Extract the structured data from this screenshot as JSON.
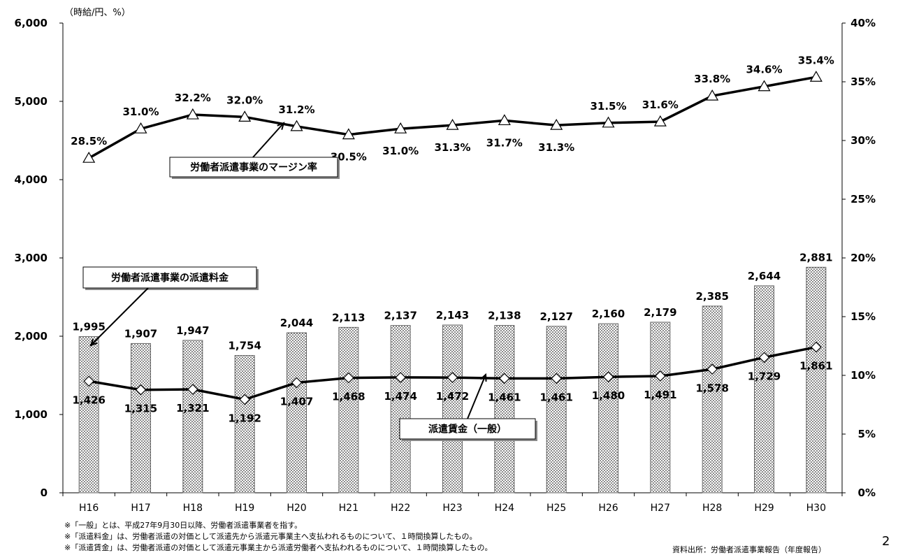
{
  "chart_data": {
    "type": "bar",
    "unit_label": "（時給/円、%）",
    "categories": [
      "H16",
      "H17",
      "H18",
      "H19",
      "H20",
      "H21",
      "H22",
      "H23",
      "H24",
      "H25",
      "H26",
      "H27",
      "H28",
      "H29",
      "H30"
    ],
    "left_axis": {
      "min": 0,
      "max": 6000,
      "ticks": [
        "0",
        "1,000",
        "2,000",
        "3,000",
        "4,000",
        "5,000",
        "6,000"
      ]
    },
    "right_axis": {
      "min": 0,
      "max": 40,
      "ticks": [
        "0%",
        "5%",
        "10%",
        "15%",
        "20%",
        "25%",
        "30%",
        "35%",
        "40%"
      ]
    },
    "series": [
      {
        "name": "労働者派遣事業の派遣料金",
        "type": "bar",
        "axis": "left",
        "values": [
          1995,
          1907,
          1947,
          1754,
          2044,
          2113,
          2137,
          2143,
          2138,
          2127,
          2160,
          2179,
          2385,
          2644,
          2881
        ],
        "labels": [
          "1,995",
          "1,907",
          "1,947",
          "1,754",
          "2,044",
          "2,113",
          "2,137",
          "2,143",
          "2,138",
          "2,127",
          "2,160",
          "2,179",
          "2,385",
          "2,644",
          "2,881"
        ]
      },
      {
        "name": "派遣賃金（一般）",
        "type": "line",
        "axis": "left",
        "marker": "diamond",
        "values": [
          1426,
          1315,
          1321,
          1192,
          1407,
          1468,
          1474,
          1472,
          1461,
          1461,
          1480,
          1491,
          1578,
          1729,
          1861
        ],
        "labels": [
          "1,426",
          "1,315",
          "1,321",
          "1,192",
          "1,407",
          "1,468",
          "1,474",
          "1,472",
          "1,461",
          "1,461",
          "1,480",
          "1,491",
          "1,578",
          "1,729",
          "1,861"
        ]
      },
      {
        "name": "労働者派遣事業のマージン率",
        "type": "line",
        "axis": "right",
        "marker": "triangle",
        "values": [
          28.5,
          31.0,
          32.2,
          32.0,
          31.2,
          30.5,
          31.0,
          31.3,
          31.7,
          31.3,
          31.5,
          31.6,
          33.8,
          34.6,
          35.4
        ],
        "labels": [
          "28.5%",
          "31.0%",
          "32.2%",
          "32.0%",
          "31.2%",
          "30.5%",
          "31.0%",
          "31.3%",
          "31.7%",
          "31.3%",
          "31.5%",
          "31.6%",
          "33.8%",
          "34.6%",
          "35.4%"
        ]
      }
    ],
    "grid": false,
    "legend": "callouts"
  },
  "notes": [
    "※「一般」とは、平成27年9月30日以降、労働者派遣事業者を指す。",
    "※「派遣料金」は、労働者派遣の対価として派遣先から派遣元事業主へ支払われるものについて、１時間換算したもの。",
    "※「派遣賃金」は、労働者派遣の対価として派遣元事業主から派遣労働者へ支払われるものについて、１時間換算したもの。"
  ],
  "source": "資料出所：労働者派遣事業報告（年度報告）",
  "page_number": "2"
}
